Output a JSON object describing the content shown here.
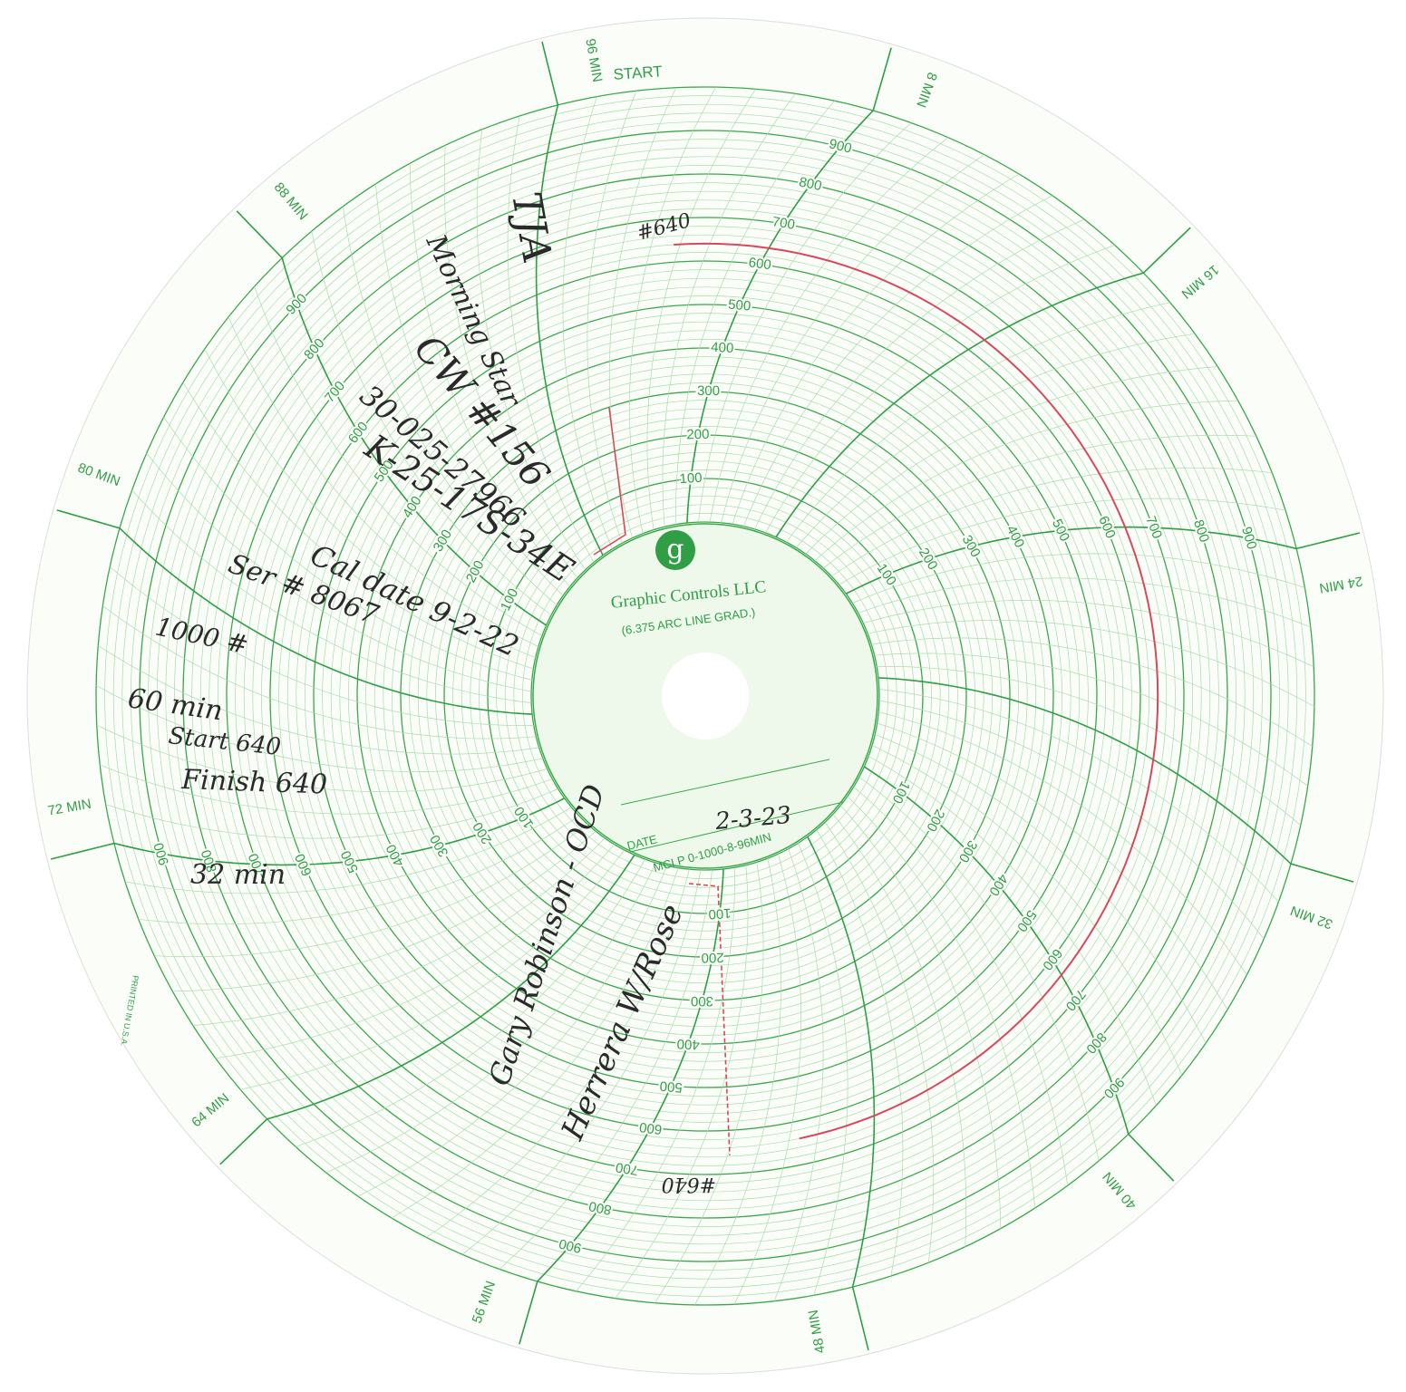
{
  "header": {
    "start": "START",
    "logo": "g",
    "brand": "Graphic Controls LLC",
    "grad": "(6.375 ARC LINE GRAD.)",
    "date_label": "DATE",
    "model": "MCI P 0-1000-8-96MIN",
    "printed": "PRINTED IN U.S.A."
  },
  "time_labels": [
    "96 MIN",
    "8 MIN",
    "16 MIN",
    "24 MIN",
    "32 MIN",
    "40 MIN",
    "48 MIN",
    "56 MIN",
    "64 MIN",
    "72 MIN",
    "80 MIN",
    "88 MIN"
  ],
  "scale_labels": [
    "100",
    "200",
    "300",
    "400",
    "500",
    "600",
    "700",
    "800",
    "900"
  ],
  "handwriting": [
    "TJA",
    "Morning Star",
    "CW #156",
    "30-025-27966",
    "K-25-17S-34E",
    "Cal date 9-2-22",
    "Ser # 8067",
    "1000 #",
    "60 min",
    "Start 640",
    "Finish 640",
    "32 min",
    "#640",
    "2-3-23",
    "#640",
    "Gary Robinson - OCD",
    "Herrera W/Rose"
  ]
}
